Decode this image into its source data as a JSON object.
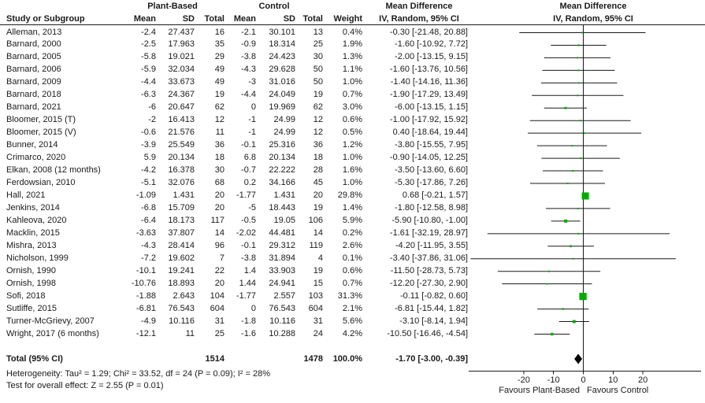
{
  "chart_data": {
    "type": "scatter",
    "variant": "forest-plot",
    "effect_measure_header": "Mean Difference",
    "method_header": "IV, Random, 95% CI",
    "group1": "Plant-Based",
    "group2": "Control",
    "columns": {
      "study": "Study or Subgroup",
      "mean": "Mean",
      "sd": "SD",
      "total": "Total",
      "weight": "Weight"
    },
    "x_axis": {
      "ticks": [
        -20,
        -10,
        0,
        10,
        20
      ],
      "range": [
        -38.5,
        39.5
      ],
      "favours_left": "Favours Plant-Based",
      "favours_right": "Favours Control"
    },
    "marker_color": "#00ab00",
    "line_color": "#1a1a1a",
    "diamond_color": "#000000",
    "studies": [
      {
        "name": "Alleman, 2013",
        "pb_mean": "-2.4",
        "pb_sd": "27.437",
        "pb_total": "16",
        "c_mean": "-2.1",
        "c_sd": "30.101",
        "c_total": "13",
        "weight_label": "0.4%",
        "weight_pct": 0.4,
        "ci_label": "-0.30 [-21.48, 20.88]",
        "md": -0.3,
        "ci_low": -21.48,
        "ci_high": 20.88
      },
      {
        "name": "Barnard, 2000",
        "pb_mean": "-2.5",
        "pb_sd": "17.963",
        "pb_total": "35",
        "c_mean": "-0.9",
        "c_sd": "18.314",
        "c_total": "25",
        "weight_label": "1.9%",
        "weight_pct": 1.9,
        "ci_label": "-1.60 [-10.92, 7.72]",
        "md": -1.6,
        "ci_low": -10.92,
        "ci_high": 7.72
      },
      {
        "name": "Barnard, 2005",
        "pb_mean": "-5.8",
        "pb_sd": "19.021",
        "pb_total": "29",
        "c_mean": "-3.8",
        "c_sd": "24.423",
        "c_total": "30",
        "weight_label": "1.3%",
        "weight_pct": 1.3,
        "ci_label": "-2.00 [-13.15, 9.15]",
        "md": -2.0,
        "ci_low": -13.15,
        "ci_high": 9.15
      },
      {
        "name": "Barnard, 2006",
        "pb_mean": "-5.9",
        "pb_sd": "32.034",
        "pb_total": "49",
        "c_mean": "-4.3",
        "c_sd": "29.628",
        "c_total": "50",
        "weight_label": "1.1%",
        "weight_pct": 1.1,
        "ci_label": "-1.60 [-13.76, 10.56]",
        "md": -1.6,
        "ci_low": -13.76,
        "ci_high": 10.56
      },
      {
        "name": "Barnard, 2009",
        "pb_mean": "-4.4",
        "pb_sd": "33.673",
        "pb_total": "49",
        "c_mean": "-3",
        "c_sd": "31.016",
        "c_total": "50",
        "weight_label": "1.0%",
        "weight_pct": 1.0,
        "ci_label": "-1.40 [-14.16, 11.36]",
        "md": -1.4,
        "ci_low": -14.16,
        "ci_high": 11.36
      },
      {
        "name": "Barnard, 2018",
        "pb_mean": "-6.3",
        "pb_sd": "24.367",
        "pb_total": "19",
        "c_mean": "-4.4",
        "c_sd": "24.049",
        "c_total": "19",
        "weight_label": "0.7%",
        "weight_pct": 0.7,
        "ci_label": "-1.90 [-17.29, 13.49]",
        "md": -1.9,
        "ci_low": -17.29,
        "ci_high": 13.49
      },
      {
        "name": "Barnard, 2021",
        "pb_mean": "-6",
        "pb_sd": "20.647",
        "pb_total": "62",
        "c_mean": "0",
        "c_sd": "19.969",
        "c_total": "62",
        "weight_label": "3.0%",
        "weight_pct": 3.0,
        "ci_label": "-6.00 [-13.15, 1.15]",
        "md": -6.0,
        "ci_low": -13.15,
        "ci_high": 1.15
      },
      {
        "name": "Bloomer, 2015 (T)",
        "pb_mean": "-2",
        "pb_sd": "16.413",
        "pb_total": "12",
        "c_mean": "-1",
        "c_sd": "24.99",
        "c_total": "12",
        "weight_label": "0.6%",
        "weight_pct": 0.6,
        "ci_label": "-1.00 [-17.92, 15.92]",
        "md": -1.0,
        "ci_low": -17.92,
        "ci_high": 15.92
      },
      {
        "name": "Bloomer, 2015 (V)",
        "pb_mean": "-0.6",
        "pb_sd": "21.576",
        "pb_total": "11",
        "c_mean": "-1",
        "c_sd": "24.99",
        "c_total": "12",
        "weight_label": "0.5%",
        "weight_pct": 0.5,
        "ci_label": "0.40 [-18.64, 19.44]",
        "md": 0.4,
        "ci_low": -18.64,
        "ci_high": 19.44
      },
      {
        "name": "Bunner, 2014",
        "pb_mean": "-3.9",
        "pb_sd": "25.549",
        "pb_total": "36",
        "c_mean": "-0.1",
        "c_sd": "25.316",
        "c_total": "36",
        "weight_label": "1.2%",
        "weight_pct": 1.2,
        "ci_label": "-3.80 [-15.55, 7.95]",
        "md": -3.8,
        "ci_low": -15.55,
        "ci_high": 7.95
      },
      {
        "name": "Crimarco, 2020",
        "pb_mean": "5.9",
        "pb_sd": "20.134",
        "pb_total": "18",
        "c_mean": "6.8",
        "c_sd": "20.134",
        "c_total": "18",
        "weight_label": "1.0%",
        "weight_pct": 1.0,
        "ci_label": "-0.90 [-14.05, 12.25]",
        "md": -0.9,
        "ci_low": -14.05,
        "ci_high": 12.25
      },
      {
        "name": "Elkan, 2008 (12 months)",
        "pb_mean": "-4.2",
        "pb_sd": "16.378",
        "pb_total": "30",
        "c_mean": "-0.7",
        "c_sd": "22.222",
        "c_total": "28",
        "weight_label": "1.6%",
        "weight_pct": 1.6,
        "ci_label": "-3.50 [-13.60, 6.60]",
        "md": -3.5,
        "ci_low": -13.6,
        "ci_high": 6.6
      },
      {
        "name": "Ferdowsian, 2010",
        "pb_mean": "-5.1",
        "pb_sd": "32.076",
        "pb_total": "68",
        "c_mean": "0.2",
        "c_sd": "34.166",
        "c_total": "45",
        "weight_label": "1.0%",
        "weight_pct": 1.0,
        "ci_label": "-5.30 [-17.86, 7.26]",
        "md": -5.3,
        "ci_low": -17.86,
        "ci_high": 7.26
      },
      {
        "name": "Hall, 2021",
        "pb_mean": "-1.09",
        "pb_sd": "1.431",
        "pb_total": "20",
        "c_mean": "-1.77",
        "c_sd": "1.431",
        "c_total": "20",
        "weight_label": "29.8%",
        "weight_pct": 29.8,
        "ci_label": "0.68 [-0.21, 1.57]",
        "md": 0.68,
        "ci_low": -0.21,
        "ci_high": 1.57
      },
      {
        "name": "Jenkins, 2014",
        "pb_mean": "-6.8",
        "pb_sd": "15.709",
        "pb_total": "20",
        "c_mean": "-5",
        "c_sd": "18.443",
        "c_total": "19",
        "weight_label": "1.4%",
        "weight_pct": 1.4,
        "ci_label": "-1.80 [-12.58, 8.98]",
        "md": -1.8,
        "ci_low": -12.58,
        "ci_high": 8.98
      },
      {
        "name": "Kahleova, 2020",
        "pb_mean": "-6.4",
        "pb_sd": "18.173",
        "pb_total": "117",
        "c_mean": "-0.5",
        "c_sd": "19.05",
        "c_total": "106",
        "weight_label": "5.9%",
        "weight_pct": 5.9,
        "ci_label": "-5.90 [-10.80, -1.00]",
        "md": -5.9,
        "ci_low": -10.8,
        "ci_high": -1.0
      },
      {
        "name": "Macklin, 2015",
        "pb_mean": "-3.63",
        "pb_sd": "37.807",
        "pb_total": "14",
        "c_mean": "-2.02",
        "c_sd": "44.481",
        "c_total": "14",
        "weight_label": "0.2%",
        "weight_pct": 0.2,
        "ci_label": "-1.61 [-32.19, 28.97]",
        "md": -1.61,
        "ci_low": -32.19,
        "ci_high": 28.97
      },
      {
        "name": "Mishra, 2013",
        "pb_mean": "-4.3",
        "pb_sd": "28.414",
        "pb_total": "96",
        "c_mean": "-0.1",
        "c_sd": "29.312",
        "c_total": "119",
        "weight_label": "2.6%",
        "weight_pct": 2.6,
        "ci_label": "-4.20 [-11.95, 3.55]",
        "md": -4.2,
        "ci_low": -11.95,
        "ci_high": 3.55
      },
      {
        "name": "Nicholson, 1999",
        "pb_mean": "-7.2",
        "pb_sd": "19.602",
        "pb_total": "7",
        "c_mean": "-3.8",
        "c_sd": "31.894",
        "c_total": "4",
        "weight_label": "0.1%",
        "weight_pct": 0.1,
        "ci_label": "-3.40 [-37.86, 31.06]",
        "md": -3.4,
        "ci_low": -37.86,
        "ci_high": 31.06
      },
      {
        "name": "Ornish, 1990",
        "pb_mean": "-10.1",
        "pb_sd": "19.241",
        "pb_total": "22",
        "c_mean": "1.4",
        "c_sd": "33.903",
        "c_total": "19",
        "weight_label": "0.6%",
        "weight_pct": 0.6,
        "ci_label": "-11.50 [-28.73, 5.73]",
        "md": -11.5,
        "ci_low": -28.73,
        "ci_high": 5.73
      },
      {
        "name": "Ornish, 1998",
        "pb_mean": "-10.76",
        "pb_sd": "18.893",
        "pb_total": "20",
        "c_mean": "1.44",
        "c_sd": "24.941",
        "c_total": "15",
        "weight_label": "0.7%",
        "weight_pct": 0.7,
        "ci_label": "-12.20 [-27.30, 2.90]",
        "md": -12.2,
        "ci_low": -27.3,
        "ci_high": 2.9
      },
      {
        "name": "Sofi, 2018",
        "pb_mean": "-1.88",
        "pb_sd": "2.643",
        "pb_total": "104",
        "c_mean": "-1.77",
        "c_sd": "2.557",
        "c_total": "103",
        "weight_label": "31.3%",
        "weight_pct": 31.3,
        "ci_label": "-0.11 [-0.82, 0.60]",
        "md": -0.11,
        "ci_low": -0.82,
        "ci_high": 0.6
      },
      {
        "name": "Sutliffe, 2015",
        "pb_mean": "-6.81",
        "pb_sd": "76.543",
        "pb_total": "604",
        "c_mean": "0",
        "c_sd": "76.543",
        "c_total": "604",
        "weight_label": "2.1%",
        "weight_pct": 2.1,
        "ci_label": "-6.81 [-15.44, 1.82]",
        "md": -6.81,
        "ci_low": -15.44,
        "ci_high": 1.82
      },
      {
        "name": "Turner-McGrievy, 2007",
        "pb_mean": "-4.9",
        "pb_sd": "10.116",
        "pb_total": "31",
        "c_mean": "-1.8",
        "c_sd": "10.116",
        "c_total": "31",
        "weight_label": "5.6%",
        "weight_pct": 5.6,
        "ci_label": "-3.10 [-8.14, 1.94]",
        "md": -3.1,
        "ci_low": -8.14,
        "ci_high": 1.94
      },
      {
        "name": "Wright, 2017 (6 months)",
        "pb_mean": "-12.1",
        "pb_sd": "11",
        "pb_total": "25",
        "c_mean": "-1.6",
        "c_sd": "10.288",
        "c_total": "24",
        "weight_label": "4.2%",
        "weight_pct": 4.2,
        "ci_label": "-10.50 [-16.46, -4.54]",
        "md": -10.5,
        "ci_low": -16.46,
        "ci_high": -4.54
      }
    ],
    "total": {
      "label": "Total (95% CI)",
      "pb_total": "1514",
      "c_total": "1478",
      "weight_label": "100.0%",
      "ci_label": "-1.70 [-3.00, -0.39]",
      "md": -1.7,
      "ci_low": -3.0,
      "ci_high": -0.39
    },
    "heterogeneity": "Heterogeneity: Tau² = 1.29; Chi² = 33.52, df = 24 (P = 0.09); I² = 28%",
    "overall_effect": "Test for overall effect: Z = 2.55 (P = 0.01)"
  }
}
